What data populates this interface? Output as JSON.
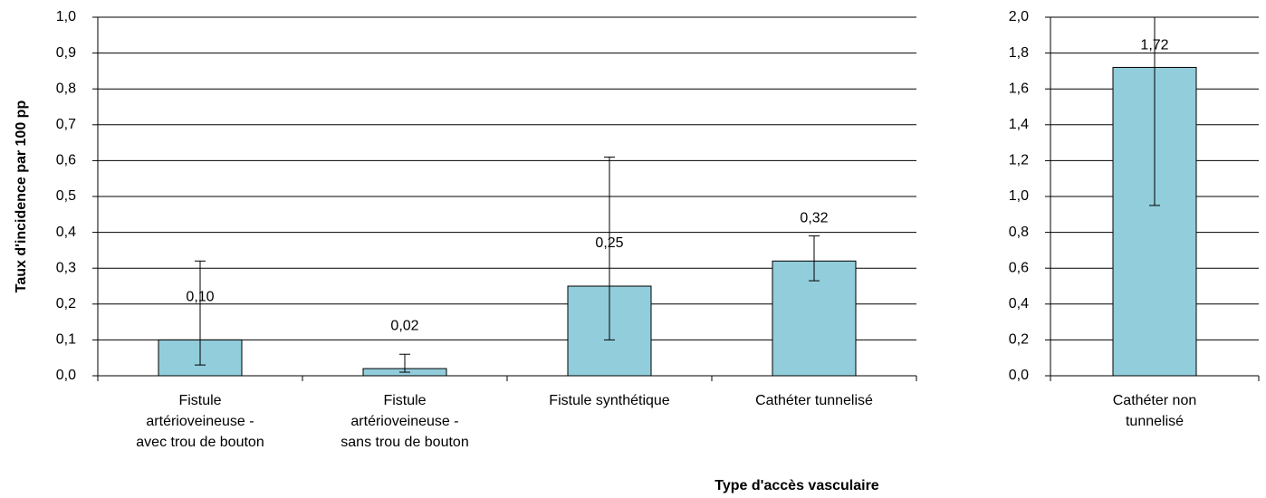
{
  "chart_data": [
    {
      "type": "bar",
      "y_label": "Taux d'incidence par 100 pp",
      "x_label": "Type d'accès vasculaire",
      "categories": [
        [
          "Fistule",
          "artérioveineuse -",
          "avec trou de bouton"
        ],
        [
          "Fistule",
          "artérioveineuse -",
          "sans trou de bouton"
        ],
        [
          "Fistule synthétique"
        ],
        [
          "Cathéter tunnelisé"
        ]
      ],
      "values": [
        0.1,
        0.02,
        0.25,
        0.32
      ],
      "value_labels": [
        "0,10",
        "0,02",
        "0,25",
        "0,32"
      ],
      "error_lower": [
        0.03,
        0.01,
        0.1,
        0.265
      ],
      "error_upper": [
        0.32,
        0.06,
        0.61,
        0.39
      ],
      "color": "#92cddc",
      "ylim": [
        0,
        1.0
      ],
      "yticks": [
        {
          "value": 0,
          "label": "0,0"
        },
        {
          "value": 0.1,
          "label": "0,1"
        },
        {
          "value": 0.2,
          "label": "0,2"
        },
        {
          "value": 0.3,
          "label": "0,3"
        },
        {
          "value": 0.4,
          "label": "0,4"
        },
        {
          "value": 0.5,
          "label": "0,5"
        },
        {
          "value": 0.6,
          "label": "0,6"
        },
        {
          "value": 0.7,
          "label": "0,7"
        },
        {
          "value": 0.8,
          "label": "0,8"
        },
        {
          "value": 0.9,
          "label": "0,9"
        },
        {
          "value": 1.0,
          "label": "1,0"
        }
      ],
      "grid": true
    },
    {
      "type": "bar",
      "categories": [
        [
          "Cathéter non",
          "tunnelisé"
        ]
      ],
      "values": [
        1.72
      ],
      "value_labels": [
        "1,72"
      ],
      "error_lower": [
        0.95
      ],
      "error_upper": [
        2.0
      ],
      "color": "#92cddc",
      "ylim": [
        0,
        2.0
      ],
      "yticks": [
        {
          "value": 0,
          "label": "0,0"
        },
        {
          "value": 0.2,
          "label": "0,2"
        },
        {
          "value": 0.4,
          "label": "0,4"
        },
        {
          "value": 0.6,
          "label": "0,6"
        },
        {
          "value": 0.8,
          "label": "0,8"
        },
        {
          "value": 1.0,
          "label": "1,0"
        },
        {
          "value": 1.2,
          "label": "1,2"
        },
        {
          "value": 1.4,
          "label": "1,4"
        },
        {
          "value": 1.6,
          "label": "1,6"
        },
        {
          "value": 1.8,
          "label": "1,8"
        },
        {
          "value": 2.0,
          "label": "2,0"
        }
      ],
      "grid": true
    }
  ]
}
